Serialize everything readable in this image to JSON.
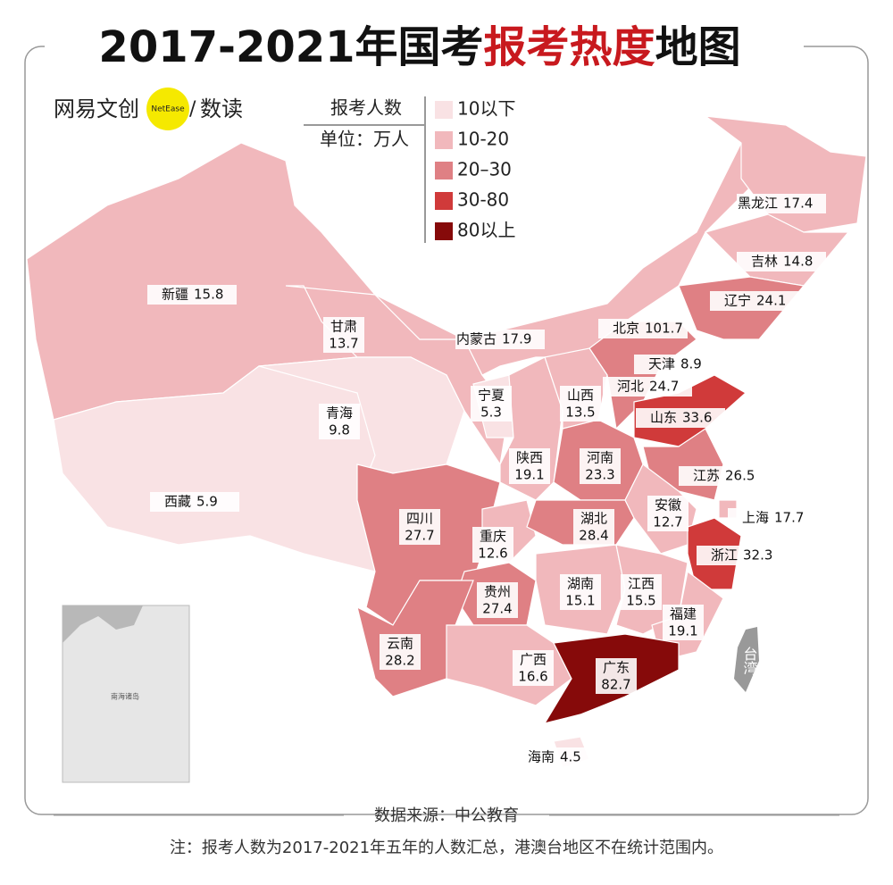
{
  "title": {
    "part1": "2017-2021年国考",
    "part2": "报考热度",
    "part3": "地图"
  },
  "logo": {
    "brand": "网易文创",
    "badge": "NetEase",
    "sub": "数读"
  },
  "legend": {
    "title": "报考人数",
    "unit": "单位：万人",
    "items": [
      {
        "label": "10以下",
        "color": "#f9e2e4"
      },
      {
        "label": "10-20",
        "color": "#f1b8bc"
      },
      {
        "label": "20–30",
        "color": "#df8084"
      },
      {
        "label": "30-80",
        "color": "#d03a3a"
      },
      {
        "label": "80以上",
        "color": "#860a0a"
      }
    ]
  },
  "regions": [
    {
      "name": "新疆",
      "value": 15.8,
      "color": "#f1b8bc"
    },
    {
      "name": "甘肃",
      "value": 13.7,
      "color": "#f1b8bc"
    },
    {
      "name": "内蒙古",
      "value": 17.9,
      "color": "#f1b8bc"
    },
    {
      "name": "黑龙江",
      "value": 17.4,
      "color": "#f1b8bc"
    },
    {
      "name": "吉林",
      "value": 14.8,
      "color": "#f1b8bc"
    },
    {
      "name": "辽宁",
      "value": 24.1,
      "color": "#df8084"
    },
    {
      "name": "北京",
      "value": 101.7,
      "color": "#860a0a"
    },
    {
      "name": "天津",
      "value": 8.9,
      "color": "#f9e2e4"
    },
    {
      "name": "河北",
      "value": 24.7,
      "color": "#df8084"
    },
    {
      "name": "山东",
      "value": 33.6,
      "color": "#d03a3a"
    },
    {
      "name": "山西",
      "value": 13.5,
      "color": "#f1b8bc"
    },
    {
      "name": "宁夏",
      "value": 5.3,
      "color": "#f9e2e4"
    },
    {
      "name": "青海",
      "value": 9.8,
      "color": "#f9e2e4"
    },
    {
      "name": "陕西",
      "value": 19.1,
      "color": "#f1b8bc"
    },
    {
      "name": "河南",
      "value": 23.3,
      "color": "#df8084"
    },
    {
      "name": "江苏",
      "value": 26.5,
      "color": "#df8084"
    },
    {
      "name": "西藏",
      "value": 5.9,
      "color": "#f9e2e4"
    },
    {
      "name": "四川",
      "value": 27.7,
      "color": "#df8084"
    },
    {
      "name": "重庆",
      "value": 12.6,
      "color": "#f1b8bc"
    },
    {
      "name": "湖北",
      "value": 28.4,
      "color": "#df8084"
    },
    {
      "name": "安徽",
      "value": 12.7,
      "color": "#f1b8bc"
    },
    {
      "name": "上海",
      "value": 17.7,
      "color": "#f1b8bc"
    },
    {
      "name": "浙江",
      "value": 32.3,
      "color": "#d03a3a"
    },
    {
      "name": "贵州",
      "value": 27.4,
      "color": "#df8084"
    },
    {
      "name": "湖南",
      "value": 15.1,
      "color": "#f1b8bc"
    },
    {
      "name": "江西",
      "value": 15.5,
      "color": "#f1b8bc"
    },
    {
      "name": "福建",
      "value": 19.1,
      "color": "#f1b8bc"
    },
    {
      "name": "云南",
      "value": 28.2,
      "color": "#df8084"
    },
    {
      "name": "广西",
      "value": 16.6,
      "color": "#f1b8bc"
    },
    {
      "name": "广东",
      "value": 82.7,
      "color": "#860a0a"
    },
    {
      "name": "海南",
      "value": 4.5,
      "color": "#f9e2e4"
    }
  ],
  "taiwan": "台湾",
  "inset": "南海诸岛",
  "source": "数据来源：中公教育",
  "note": "注：报考人数为2017-2021年五年的人数汇总，港澳台地区不在统计范围内。"
}
